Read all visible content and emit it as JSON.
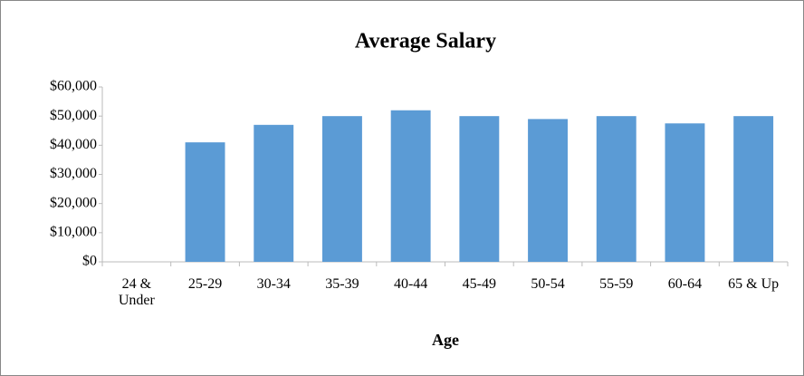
{
  "chart_data": {
    "type": "bar",
    "title": "Average Salary",
    "x_label": "Age",
    "categories": [
      "24 & Under",
      "25-29",
      "30-34",
      "35-39",
      "40-44",
      "45-49",
      "50-54",
      "55-59",
      "60-64",
      "65 & Up"
    ],
    "values": [
      0,
      41000,
      47000,
      50000,
      52000,
      50000,
      49000,
      50000,
      47500,
      50000
    ],
    "color": "#5b9bd5",
    "ylim": [
      0,
      60000
    ],
    "yticks": [
      {
        "value": 0,
        "label": "$0"
      },
      {
        "value": 10000,
        "label": "$10,000"
      },
      {
        "value": 20000,
        "label": "$20,000"
      },
      {
        "value": 30000,
        "label": "$30,000"
      },
      {
        "value": 40000,
        "label": "$40,000"
      },
      {
        "value": 50000,
        "label": "$50,000"
      },
      {
        "value": 60000,
        "label": "$60,000"
      }
    ],
    "grid": false
  }
}
